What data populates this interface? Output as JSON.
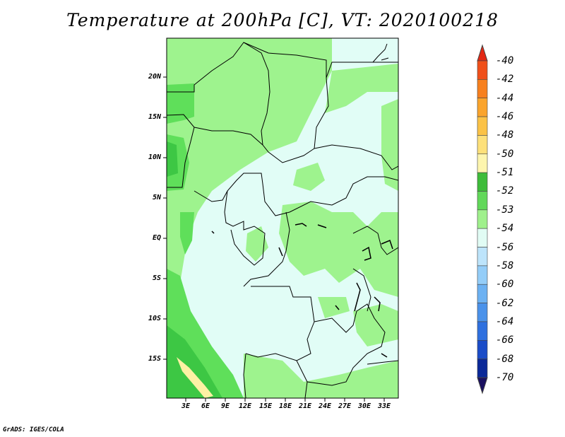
{
  "title": "Temperature at 200hPa [C], VT: 2020100218",
  "footer": "GrADS: IGES/COLA",
  "map": {
    "lat_labels": [
      "20N",
      "15N",
      "10N",
      "5N",
      "EQ",
      "5S",
      "10S",
      "15S"
    ],
    "lon_labels": [
      "3E",
      "6E",
      "9E",
      "12E",
      "15E",
      "18E",
      "21E",
      "24E",
      "27E",
      "30E",
      "33E"
    ],
    "fields": [
      {
        "label": "-53",
        "color": "#9ef38e"
      },
      {
        "label": "-54",
        "color": "#e1fdf6"
      },
      {
        "label": "-52",
        "color": "#5fdf5a"
      },
      {
        "label": "-51",
        "color": "#3dc744"
      },
      {
        "label": "-50",
        "color": "#fdf1a4"
      }
    ]
  },
  "colorbar": {
    "labels": [
      "-40",
      "-42",
      "-44",
      "-46",
      "-48",
      "-50",
      "-51",
      "-52",
      "-53",
      "-54",
      "-56",
      "-58",
      "-60",
      "-62",
      "-64",
      "-66",
      "-68",
      "-70"
    ],
    "colors": [
      "#e22814",
      "#f0501a",
      "#f7801e",
      "#faa42c",
      "#fbc246",
      "#fde07a",
      "#fdf5ae",
      "#3ebc3a",
      "#62d85a",
      "#9ff08c",
      "#e1fcf4",
      "#bde4fb",
      "#94cdf8",
      "#6cb1f2",
      "#4a92ea",
      "#2e70df",
      "#1a4cc8",
      "#0a2898",
      "#1a1060"
    ]
  }
}
